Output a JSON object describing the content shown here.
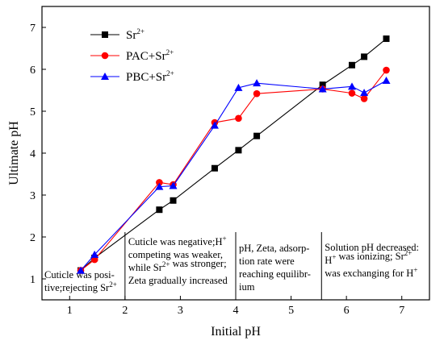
{
  "chart_data": {
    "type": "line",
    "title": "",
    "xlabel": "Initial pH",
    "ylabel": "Ultimate pH",
    "xlim": [
      0.5,
      7.5
    ],
    "ylim": [
      0.5,
      7.5
    ],
    "xticks": [
      1,
      2,
      3,
      4,
      5,
      6,
      7
    ],
    "yticks": [
      1,
      2,
      3,
      4,
      5,
      6,
      7
    ],
    "grid": false,
    "legend_position": "top-left",
    "series": [
      {
        "name": "Sr",
        "name_sup": "2+",
        "color": "#000000",
        "marker": "square",
        "x": [
          1.2,
          1.45,
          2.62,
          2.87,
          3.62,
          4.05,
          4.38,
          5.57,
          6.1,
          6.32,
          6.72
        ],
        "y": [
          1.2,
          1.5,
          2.65,
          2.87,
          3.64,
          4.07,
          4.41,
          5.63,
          6.1,
          6.3,
          6.73
        ]
      },
      {
        "name": "PAC+Sr",
        "name_sup": "2+",
        "color": "#ff0000",
        "marker": "circle",
        "x": [
          1.2,
          1.45,
          2.62,
          2.87,
          3.62,
          4.05,
          4.38,
          5.57,
          6.1,
          6.32,
          6.72
        ],
        "y": [
          1.2,
          1.46,
          3.3,
          3.25,
          4.73,
          4.83,
          5.42,
          5.53,
          5.43,
          5.3,
          5.98
        ]
      },
      {
        "name": "PBC+Sr",
        "name_sup": "2+",
        "color": "#0000ff",
        "marker": "triangle",
        "x": [
          1.2,
          1.45,
          2.62,
          2.87,
          3.62,
          4.05,
          4.38,
          5.57,
          6.1,
          6.32,
          6.72
        ],
        "y": [
          1.2,
          1.58,
          3.2,
          3.22,
          4.66,
          5.56,
          5.67,
          5.53,
          5.59,
          5.44,
          5.73
        ]
      }
    ],
    "region_dividers": [
      2.0,
      4.0,
      5.55
    ],
    "annotations": [
      {
        "lines": [
          [
            "Cuticle was posi-"
          ],
          [
            "tive;rejecting Sr",
            {
              "sup": "2+"
            }
          ]
        ]
      },
      {
        "lines": [
          [
            "Cuticle was negative;H",
            {
              "sup": "+"
            }
          ],
          [
            "competing was weaker,"
          ],
          [
            "while Sr",
            {
              "sup": "2+"
            },
            " was stronger;"
          ],
          [
            "Zeta gradually increased"
          ]
        ]
      },
      {
        "lines": [
          [
            "pH, Zeta, adsorp-"
          ],
          [
            "tion rate were"
          ],
          [
            "reaching equilibr-"
          ],
          [
            "ium"
          ]
        ]
      },
      {
        "lines": [
          [
            "Solution pH decreased:"
          ],
          [
            "H",
            {
              "sup": "+"
            },
            " was ionizing; Sr",
            {
              "sup": "2+"
            }
          ],
          [
            "was exchanging for H",
            {
              "sup": "+"
            }
          ]
        ]
      }
    ]
  }
}
